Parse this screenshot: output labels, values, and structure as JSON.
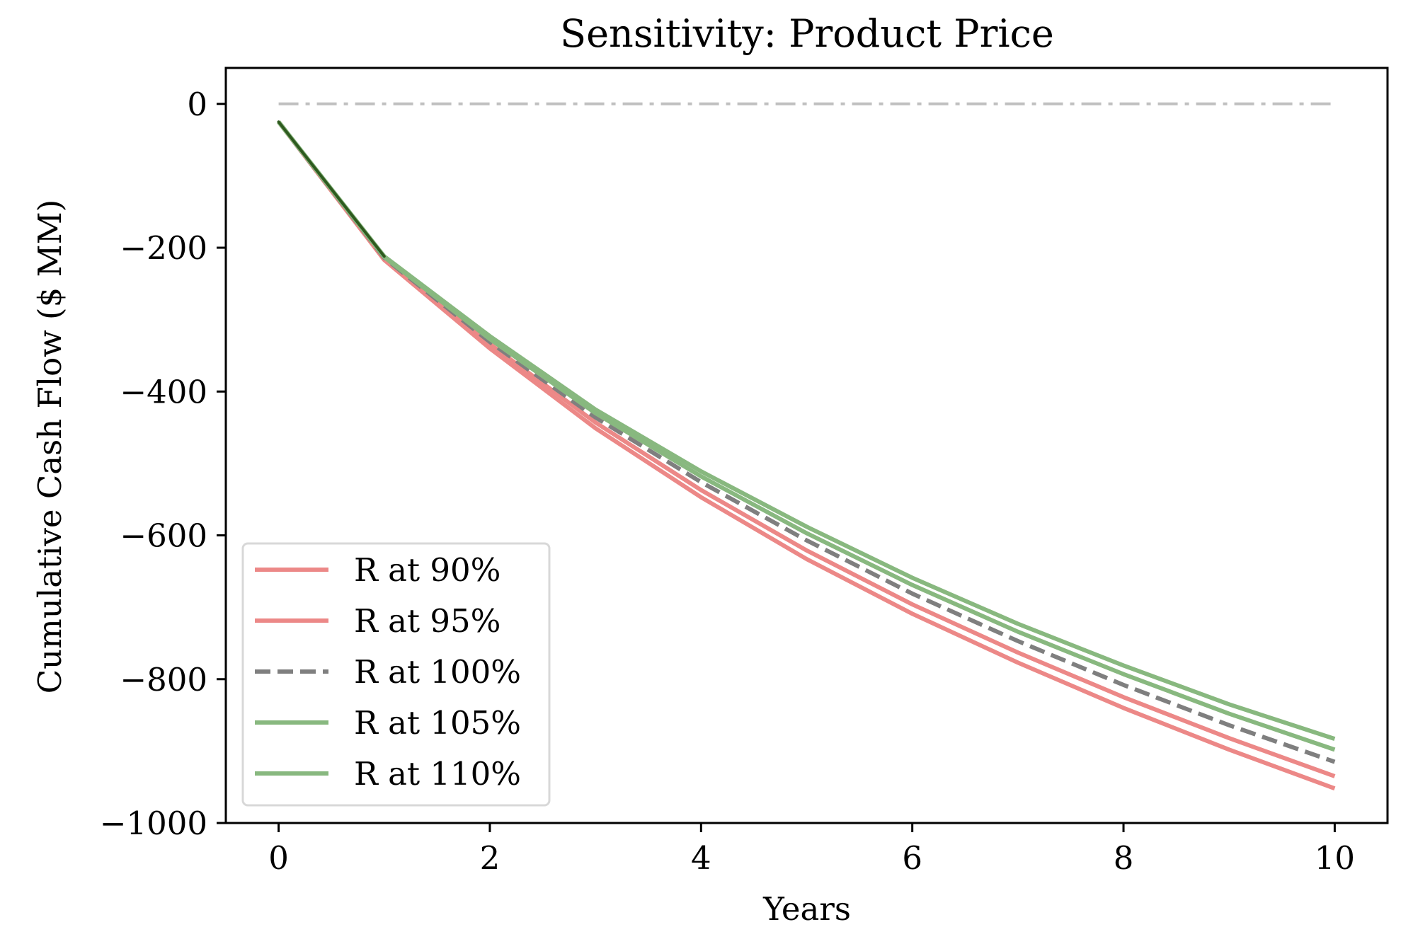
{
  "chart_data": {
    "type": "line",
    "title": "Sensitivity: Product Price",
    "xlabel": "Years",
    "ylabel": "Cumulative Cash Flow ($ MM)",
    "xlim": [
      -0.5,
      10.5
    ],
    "ylim": [
      -1000,
      50
    ],
    "x_ticks": [
      0,
      2,
      4,
      6,
      8,
      10
    ],
    "y_ticks": [
      0,
      -200,
      -400,
      -600,
      -800,
      -1000
    ],
    "x_tick_labels": [
      "0",
      "2",
      "4",
      "6",
      "8",
      "10"
    ],
    "y_tick_labels": [
      "0",
      "−200",
      "−400",
      "−600",
      "−800",
      "−1000"
    ],
    "grid": false,
    "legend_position": "lower-left",
    "reference_line": {
      "y": 0,
      "x_range": [
        0,
        10
      ],
      "style": "dash-dot",
      "color": "#c0c0c0"
    },
    "x": [
      0,
      1,
      2,
      3,
      4,
      5,
      6,
      7,
      8,
      9,
      10
    ],
    "series": [
      {
        "name": "R at 90%",
        "color": "#ec8887",
        "style": "solid",
        "values": [
          -25,
          -217,
          -340,
          -451,
          -547,
          -633,
          -709,
          -777,
          -840,
          -898,
          -952
        ]
      },
      {
        "name": "R at 95%",
        "color": "#ec8887",
        "style": "solid",
        "values": [
          -25,
          -215,
          -334,
          -443,
          -537,
          -621,
          -696,
          -763,
          -825,
          -882,
          -935
        ]
      },
      {
        "name": "R at 100%",
        "color": "#7f7f7f",
        "style": "dashed",
        "values": [
          -25,
          -214,
          -331,
          -436,
          -526,
          -607,
          -681,
          -747,
          -808,
          -864,
          -915
        ]
      },
      {
        "name": "R at 105%",
        "color": "#88b87f",
        "style": "solid",
        "values": [
          -25,
          -213,
          -327,
          -430,
          -518,
          -597,
          -669,
          -734,
          -793,
          -848,
          -898
        ]
      },
      {
        "name": "R at 110%",
        "color": "#88b87f",
        "style": "solid",
        "values": [
          -25,
          -212,
          -323,
          -425,
          -511,
          -588,
          -659,
          -723,
          -781,
          -835,
          -883
        ]
      }
    ],
    "start_segment_color": "#2e5a1f"
  }
}
